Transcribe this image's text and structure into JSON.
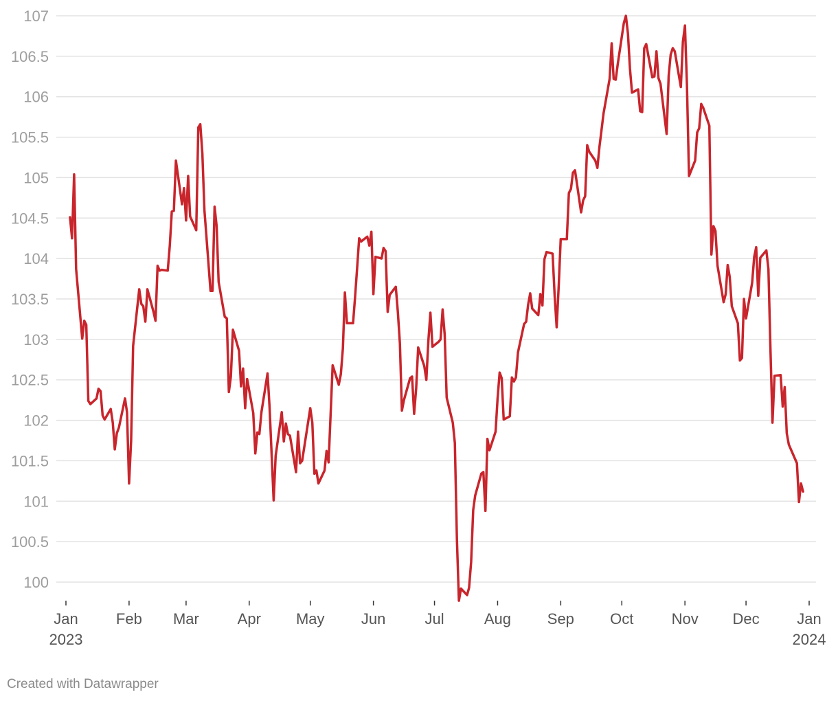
{
  "chart_data": {
    "type": "line",
    "title": "",
    "xlabel": "",
    "ylabel": "",
    "ylim": [
      100,
      107
    ],
    "xlim": [
      "2023-01-01",
      "2024-01-01"
    ],
    "grid": true,
    "y_ticks": [
      "100",
      "100.5",
      "101",
      "101.5",
      "102",
      "102.5",
      "103",
      "103.5",
      "104",
      "104.5",
      "105",
      "105.5",
      "106",
      "106.5",
      "107"
    ],
    "x_ticks": [
      {
        "date": "2023-01-01",
        "label": "Jan",
        "year": "2023"
      },
      {
        "date": "2023-02-01",
        "label": "Feb",
        "year": ""
      },
      {
        "date": "2023-03-01",
        "label": "Mar",
        "year": ""
      },
      {
        "date": "2023-04-01",
        "label": "Apr",
        "year": ""
      },
      {
        "date": "2023-05-01",
        "label": "May",
        "year": ""
      },
      {
        "date": "2023-06-01",
        "label": "Jun",
        "year": ""
      },
      {
        "date": "2023-07-01",
        "label": "Jul",
        "year": ""
      },
      {
        "date": "2023-08-01",
        "label": "Aug",
        "year": ""
      },
      {
        "date": "2023-09-01",
        "label": "Sep",
        "year": ""
      },
      {
        "date": "2023-10-01",
        "label": "Oct",
        "year": ""
      },
      {
        "date": "2023-11-01",
        "label": "Nov",
        "year": ""
      },
      {
        "date": "2023-12-01",
        "label": "Dec",
        "year": ""
      },
      {
        "date": "2024-01-01",
        "label": "Jan",
        "year": "2024"
      }
    ],
    "series": [
      {
        "color": "#c9252c",
        "points": [
          [
            "2023-01-03",
            104.51
          ],
          [
            "2023-01-04",
            104.25
          ],
          [
            "2023-01-05",
            105.04
          ],
          [
            "2023-01-06",
            103.87
          ],
          [
            "2023-01-09",
            103.01
          ],
          [
            "2023-01-10",
            103.23
          ],
          [
            "2023-01-11",
            103.18
          ],
          [
            "2023-01-12",
            102.24
          ],
          [
            "2023-01-13",
            102.2
          ],
          [
            "2023-01-16",
            102.27
          ],
          [
            "2023-01-17",
            102.39
          ],
          [
            "2023-01-18",
            102.36
          ],
          [
            "2023-01-19",
            102.06
          ],
          [
            "2023-01-20",
            102.01
          ],
          [
            "2023-01-23",
            102.14
          ],
          [
            "2023-01-24",
            101.97
          ],
          [
            "2023-01-25",
            101.64
          ],
          [
            "2023-01-26",
            101.84
          ],
          [
            "2023-01-27",
            101.91
          ],
          [
            "2023-01-30",
            102.27
          ],
          [
            "2023-01-31",
            102.1
          ],
          [
            "2023-02-01",
            101.22
          ],
          [
            "2023-02-02",
            101.75
          ],
          [
            "2023-02-03",
            102.92
          ],
          [
            "2023-02-06",
            103.62
          ],
          [
            "2023-02-07",
            103.44
          ],
          [
            "2023-02-08",
            103.41
          ],
          [
            "2023-02-09",
            103.22
          ],
          [
            "2023-02-10",
            103.62
          ],
          [
            "2023-02-13",
            103.34
          ],
          [
            "2023-02-14",
            103.23
          ],
          [
            "2023-02-15",
            103.91
          ],
          [
            "2023-02-16",
            103.85
          ],
          [
            "2023-02-17",
            103.86
          ],
          [
            "2023-02-20",
            103.85
          ],
          [
            "2023-02-21",
            104.16
          ],
          [
            "2023-02-22",
            104.58
          ],
          [
            "2023-02-23",
            104.59
          ],
          [
            "2023-02-24",
            105.21
          ],
          [
            "2023-02-27",
            104.67
          ],
          [
            "2023-02-28",
            104.87
          ],
          [
            "2023-03-01",
            104.47
          ],
          [
            "2023-03-02",
            105.02
          ],
          [
            "2023-03-03",
            104.52
          ],
          [
            "2023-03-06",
            104.35
          ],
          [
            "2023-03-07",
            105.62
          ],
          [
            "2023-03-08",
            105.66
          ],
          [
            "2023-03-09",
            105.3
          ],
          [
            "2023-03-10",
            104.6
          ],
          [
            "2023-03-13",
            103.6
          ],
          [
            "2023-03-14",
            103.6
          ],
          [
            "2023-03-15",
            104.64
          ],
          [
            "2023-03-16",
            104.4
          ],
          [
            "2023-03-17",
            103.71
          ],
          [
            "2023-03-20",
            103.28
          ],
          [
            "2023-03-21",
            103.26
          ],
          [
            "2023-03-22",
            102.35
          ],
          [
            "2023-03-23",
            102.54
          ],
          [
            "2023-03-24",
            103.12
          ],
          [
            "2023-03-27",
            102.86
          ],
          [
            "2023-03-28",
            102.42
          ],
          [
            "2023-03-29",
            102.64
          ],
          [
            "2023-03-30",
            102.15
          ],
          [
            "2023-03-31",
            102.51
          ],
          [
            "2023-04-03",
            102.09
          ],
          [
            "2023-04-04",
            101.59
          ],
          [
            "2023-04-05",
            101.85
          ],
          [
            "2023-04-06",
            101.83
          ],
          [
            "2023-04-07",
            102.1
          ],
          [
            "2023-04-10",
            102.58
          ],
          [
            "2023-04-11",
            102.17
          ],
          [
            "2023-04-13",
            101.01
          ],
          [
            "2023-04-14",
            101.56
          ],
          [
            "2023-04-17",
            102.1
          ],
          [
            "2023-04-18",
            101.74
          ],
          [
            "2023-04-19",
            101.96
          ],
          [
            "2023-04-20",
            101.83
          ],
          [
            "2023-04-21",
            101.81
          ],
          [
            "2023-04-24",
            101.36
          ],
          [
            "2023-04-25",
            101.86
          ],
          [
            "2023-04-26",
            101.47
          ],
          [
            "2023-04-27",
            101.5
          ],
          [
            "2023-05-01",
            102.15
          ],
          [
            "2023-05-02",
            101.97
          ],
          [
            "2023-05-03",
            101.34
          ],
          [
            "2023-05-04",
            101.38
          ],
          [
            "2023-05-05",
            101.22
          ],
          [
            "2023-05-08",
            101.38
          ],
          [
            "2023-05-09",
            101.62
          ],
          [
            "2023-05-10",
            101.48
          ],
          [
            "2023-05-12",
            102.68
          ],
          [
            "2023-05-15",
            102.44
          ],
          [
            "2023-05-16",
            102.57
          ],
          [
            "2023-05-17",
            102.89
          ],
          [
            "2023-05-18",
            103.58
          ],
          [
            "2023-05-19",
            103.2
          ],
          [
            "2023-05-22",
            103.2
          ],
          [
            "2023-05-23",
            103.52
          ],
          [
            "2023-05-24",
            103.88
          ],
          [
            "2023-05-25",
            104.25
          ],
          [
            "2023-05-26",
            104.21
          ],
          [
            "2023-05-29",
            104.27
          ],
          [
            "2023-05-30",
            104.16
          ],
          [
            "2023-05-31",
            104.33
          ],
          [
            "2023-06-01",
            103.56
          ],
          [
            "2023-06-02",
            104.02
          ],
          [
            "2023-06-05",
            104.0
          ],
          [
            "2023-06-06",
            104.13
          ],
          [
            "2023-06-07",
            104.09
          ],
          [
            "2023-06-08",
            103.34
          ],
          [
            "2023-06-09",
            103.55
          ],
          [
            "2023-06-12",
            103.65
          ],
          [
            "2023-06-13",
            103.34
          ],
          [
            "2023-06-14",
            102.95
          ],
          [
            "2023-06-15",
            102.12
          ],
          [
            "2023-06-16",
            102.25
          ],
          [
            "2023-06-19",
            102.52
          ],
          [
            "2023-06-20",
            102.54
          ],
          [
            "2023-06-21",
            102.08
          ],
          [
            "2023-06-22",
            102.4
          ],
          [
            "2023-06-23",
            102.9
          ],
          [
            "2023-06-26",
            102.67
          ],
          [
            "2023-06-27",
            102.5
          ],
          [
            "2023-06-28",
            102.99
          ],
          [
            "2023-06-29",
            103.33
          ],
          [
            "2023-06-30",
            102.91
          ],
          [
            "2023-07-03",
            102.97
          ],
          [
            "2023-07-04",
            103.0
          ],
          [
            "2023-07-05",
            103.37
          ],
          [
            "2023-07-06",
            103.06
          ],
          [
            "2023-07-07",
            102.28
          ],
          [
            "2023-07-10",
            101.97
          ],
          [
            "2023-07-11",
            101.72
          ],
          [
            "2023-07-12",
            100.53
          ],
          [
            "2023-07-13",
            99.77
          ],
          [
            "2023-07-14",
            99.92
          ],
          [
            "2023-07-17",
            99.84
          ],
          [
            "2023-07-18",
            99.93
          ],
          [
            "2023-07-19",
            100.25
          ],
          [
            "2023-07-20",
            100.89
          ],
          [
            "2023-07-21",
            101.07
          ],
          [
            "2023-07-24",
            101.34
          ],
          [
            "2023-07-25",
            101.36
          ],
          [
            "2023-07-26",
            100.88
          ],
          [
            "2023-07-27",
            101.77
          ],
          [
            "2023-07-28",
            101.63
          ],
          [
            "2023-07-31",
            101.86
          ],
          [
            "2023-08-01",
            102.27
          ],
          [
            "2023-08-02",
            102.59
          ],
          [
            "2023-08-03",
            102.52
          ],
          [
            "2023-08-04",
            102.01
          ],
          [
            "2023-08-07",
            102.05
          ],
          [
            "2023-08-08",
            102.53
          ],
          [
            "2023-08-09",
            102.48
          ],
          [
            "2023-08-10",
            102.53
          ],
          [
            "2023-08-11",
            102.84
          ],
          [
            "2023-08-14",
            103.19
          ],
          [
            "2023-08-15",
            103.22
          ],
          [
            "2023-08-16",
            103.43
          ],
          [
            "2023-08-17",
            103.57
          ],
          [
            "2023-08-18",
            103.38
          ],
          [
            "2023-08-21",
            103.3
          ],
          [
            "2023-08-22",
            103.56
          ],
          [
            "2023-08-23",
            103.42
          ],
          [
            "2023-08-24",
            103.99
          ],
          [
            "2023-08-25",
            104.08
          ],
          [
            "2023-08-28",
            104.06
          ],
          [
            "2023-08-29",
            103.54
          ],
          [
            "2023-08-30",
            103.15
          ],
          [
            "2023-08-31",
            103.66
          ],
          [
            "2023-09-01",
            104.24
          ],
          [
            "2023-09-04",
            104.24
          ],
          [
            "2023-09-05",
            104.81
          ],
          [
            "2023-09-06",
            104.86
          ],
          [
            "2023-09-07",
            105.06
          ],
          [
            "2023-09-08",
            105.09
          ],
          [
            "2023-09-11",
            104.57
          ],
          [
            "2023-09-12",
            104.72
          ],
          [
            "2023-09-13",
            104.77
          ],
          [
            "2023-09-14",
            105.4
          ],
          [
            "2023-09-15",
            105.32
          ],
          [
            "2023-09-18",
            105.21
          ],
          [
            "2023-09-19",
            105.12
          ],
          [
            "2023-09-20",
            105.38
          ],
          [
            "2023-09-21",
            105.58
          ],
          [
            "2023-09-22",
            105.79
          ],
          [
            "2023-09-25",
            106.22
          ],
          [
            "2023-09-26",
            106.66
          ],
          [
            "2023-09-27",
            106.22
          ],
          [
            "2023-09-28",
            106.21
          ],
          [
            "2023-09-29",
            106.4
          ],
          [
            "2023-10-02",
            106.91
          ],
          [
            "2023-10-03",
            107.0
          ],
          [
            "2023-10-04",
            106.78
          ],
          [
            "2023-10-05",
            106.35
          ],
          [
            "2023-10-06",
            106.05
          ],
          [
            "2023-10-09",
            106.09
          ],
          [
            "2023-10-10",
            105.82
          ],
          [
            "2023-10-11",
            105.81
          ],
          [
            "2023-10-12",
            106.6
          ],
          [
            "2023-10-13",
            106.65
          ],
          [
            "2023-10-16",
            106.24
          ],
          [
            "2023-10-17",
            106.25
          ],
          [
            "2023-10-18",
            106.56
          ],
          [
            "2023-10-19",
            106.23
          ],
          [
            "2023-10-20",
            106.16
          ],
          [
            "2023-10-23",
            105.54
          ],
          [
            "2023-10-24",
            106.26
          ],
          [
            "2023-10-25",
            106.52
          ],
          [
            "2023-10-26",
            106.6
          ],
          [
            "2023-10-27",
            106.56
          ],
          [
            "2023-10-30",
            106.12
          ],
          [
            "2023-10-31",
            106.68
          ],
          [
            "2023-11-01",
            106.88
          ],
          [
            "2023-11-02",
            106.14
          ],
          [
            "2023-11-03",
            105.02
          ],
          [
            "2023-11-06",
            105.21
          ],
          [
            "2023-11-07",
            105.56
          ],
          [
            "2023-11-08",
            105.61
          ],
          [
            "2023-11-09",
            105.91
          ],
          [
            "2023-11-10",
            105.86
          ],
          [
            "2023-11-13",
            105.64
          ],
          [
            "2023-11-14",
            104.05
          ],
          [
            "2023-11-15",
            104.4
          ],
          [
            "2023-11-16",
            104.34
          ],
          [
            "2023-11-17",
            103.91
          ],
          [
            "2023-11-20",
            103.46
          ],
          [
            "2023-11-21",
            103.56
          ],
          [
            "2023-11-22",
            103.92
          ],
          [
            "2023-11-23",
            103.77
          ],
          [
            "2023-11-24",
            103.41
          ],
          [
            "2023-11-27",
            103.2
          ],
          [
            "2023-11-28",
            102.74
          ],
          [
            "2023-11-29",
            102.77
          ],
          [
            "2023-11-30",
            103.5
          ],
          [
            "2023-12-01",
            103.26
          ],
          [
            "2023-12-04",
            103.7
          ],
          [
            "2023-12-05",
            104.02
          ],
          [
            "2023-12-06",
            104.14
          ],
          [
            "2023-12-07",
            103.54
          ],
          [
            "2023-12-08",
            104.01
          ],
          [
            "2023-12-11",
            104.1
          ],
          [
            "2023-12-12",
            103.87
          ],
          [
            "2023-12-13",
            102.87
          ],
          [
            "2023-12-14",
            101.97
          ],
          [
            "2023-12-15",
            102.55
          ],
          [
            "2023-12-18",
            102.56
          ],
          [
            "2023-12-19",
            102.17
          ],
          [
            "2023-12-20",
            102.41
          ],
          [
            "2023-12-21",
            101.84
          ],
          [
            "2023-12-22",
            101.7
          ],
          [
            "2023-12-26",
            101.47
          ],
          [
            "2023-12-27",
            100.99
          ],
          [
            "2023-12-28",
            101.22
          ],
          [
            "2023-12-29",
            101.12
          ]
        ]
      }
    ]
  },
  "footer": {
    "credit": "Created with Datawrapper"
  }
}
